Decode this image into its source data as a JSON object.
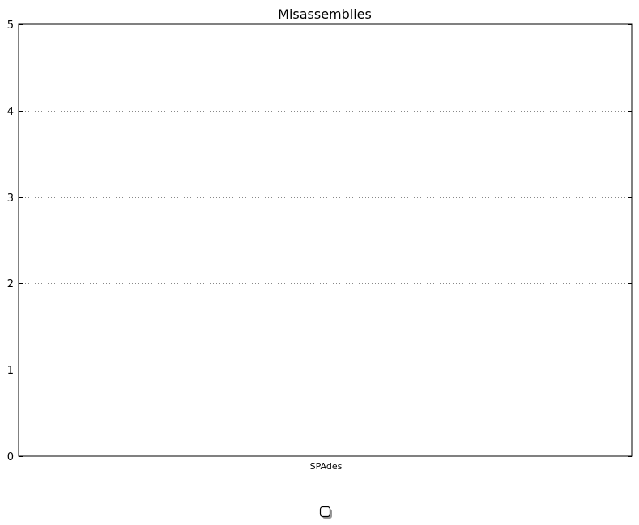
{
  "chart_data": {
    "type": "bar",
    "title": "Misassemblies",
    "xlabel": "",
    "ylabel": "",
    "categories": [
      "SPAdes"
    ],
    "series": [
      {
        "name": "",
        "values": [
          0
        ]
      }
    ],
    "ylim": [
      0,
      5
    ],
    "yticks": [
      0,
      1,
      2,
      3,
      4,
      5
    ],
    "ytick_labels": [
      "0",
      "1",
      "2",
      "3",
      "4",
      "5"
    ],
    "grid": "y-dotted",
    "legend": "bottom-center",
    "legend_entries": [
      ""
    ]
  },
  "colors": {
    "axis": "#000000",
    "grid": "#888888",
    "background": "#ffffff"
  }
}
